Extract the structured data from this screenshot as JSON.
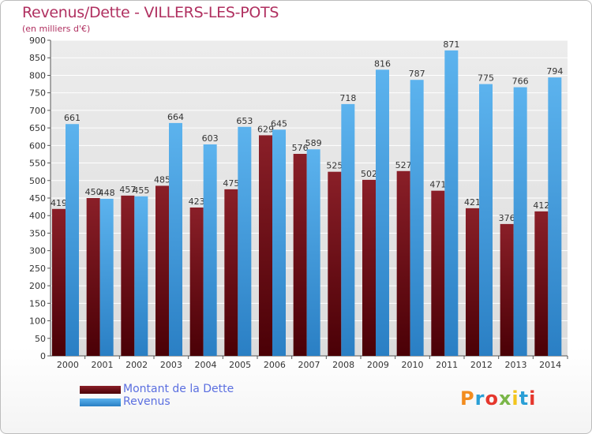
{
  "chart_data": {
    "type": "bar",
    "title": "Revenus/Dette - VILLERS-LES-POTS",
    "subtitle": "(en milliers d'€)",
    "categories": [
      "2000",
      "2001",
      "2002",
      "2003",
      "2004",
      "2005",
      "2006",
      "2007",
      "2008",
      "2009",
      "2010",
      "2011",
      "2012",
      "2013",
      "2014"
    ],
    "series": [
      {
        "name": "Montant de la Dette",
        "color": "#6b0d14",
        "values": [
          419,
          450,
          457,
          485,
          423,
          475,
          629,
          576,
          525,
          502,
          527,
          471,
          421,
          376,
          412
        ]
      },
      {
        "name": "Revenus",
        "color": "#3d9be0",
        "values": [
          661,
          448,
          455,
          664,
          603,
          653,
          645,
          589,
          718,
          816,
          787,
          871,
          775,
          766,
          794
        ]
      }
    ],
    "ylim": [
      0,
      900
    ],
    "yticks": [
      0,
      50,
      100,
      150,
      200,
      250,
      300,
      350,
      400,
      450,
      500,
      550,
      600,
      650,
      700,
      750,
      800,
      850,
      900
    ],
    "grid": true,
    "legend": "bottom-left"
  },
  "logo": {
    "text": "Proxiti",
    "colors": [
      "#f28c1e",
      "#2a9fd6",
      "#e5372d",
      "#7ab648",
      "#f2c51e",
      "#2a9fd6",
      "#e5372d"
    ]
  }
}
